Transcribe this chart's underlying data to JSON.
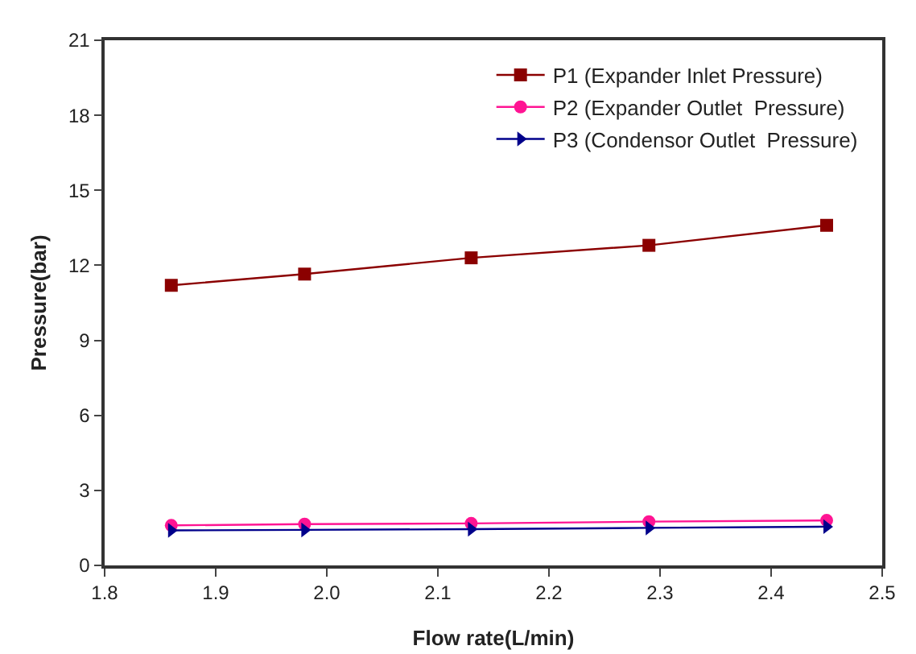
{
  "chart_data": {
    "type": "line",
    "xlabel": "Flow rate(L/min)",
    "ylabel": "Pressure(bar)",
    "x": [
      1.86,
      1.98,
      2.13,
      2.29,
      2.45
    ],
    "series": [
      {
        "name": "P1 (Expander Inlet Pressure)",
        "color": "#8b0000",
        "marker": "square",
        "values": [
          11.2,
          11.65,
          12.3,
          12.8,
          13.6
        ]
      },
      {
        "name": "P2 (Expander Outlet  Pressure)",
        "color": "#ff1493",
        "marker": "circle",
        "values": [
          1.6,
          1.65,
          1.68,
          1.75,
          1.8
        ]
      },
      {
        "name": "P3 (Condensor Outlet  Pressure)",
        "color": "#00008b",
        "marker": "triangle",
        "values": [
          1.4,
          1.42,
          1.45,
          1.5,
          1.55
        ]
      }
    ],
    "xlim": [
      1.8,
      2.5
    ],
    "xticks": [
      1.8,
      1.9,
      {
        "value": 2.0,
        "label": "2.0"
      },
      2.1,
      2.2,
      2.3,
      2.4,
      2.5
    ],
    "ylim": [
      0,
      21
    ],
    "yticks": [
      0,
      3,
      6,
      9,
      12,
      15,
      18,
      21
    ],
    "grid": false,
    "legend": "top right"
  }
}
